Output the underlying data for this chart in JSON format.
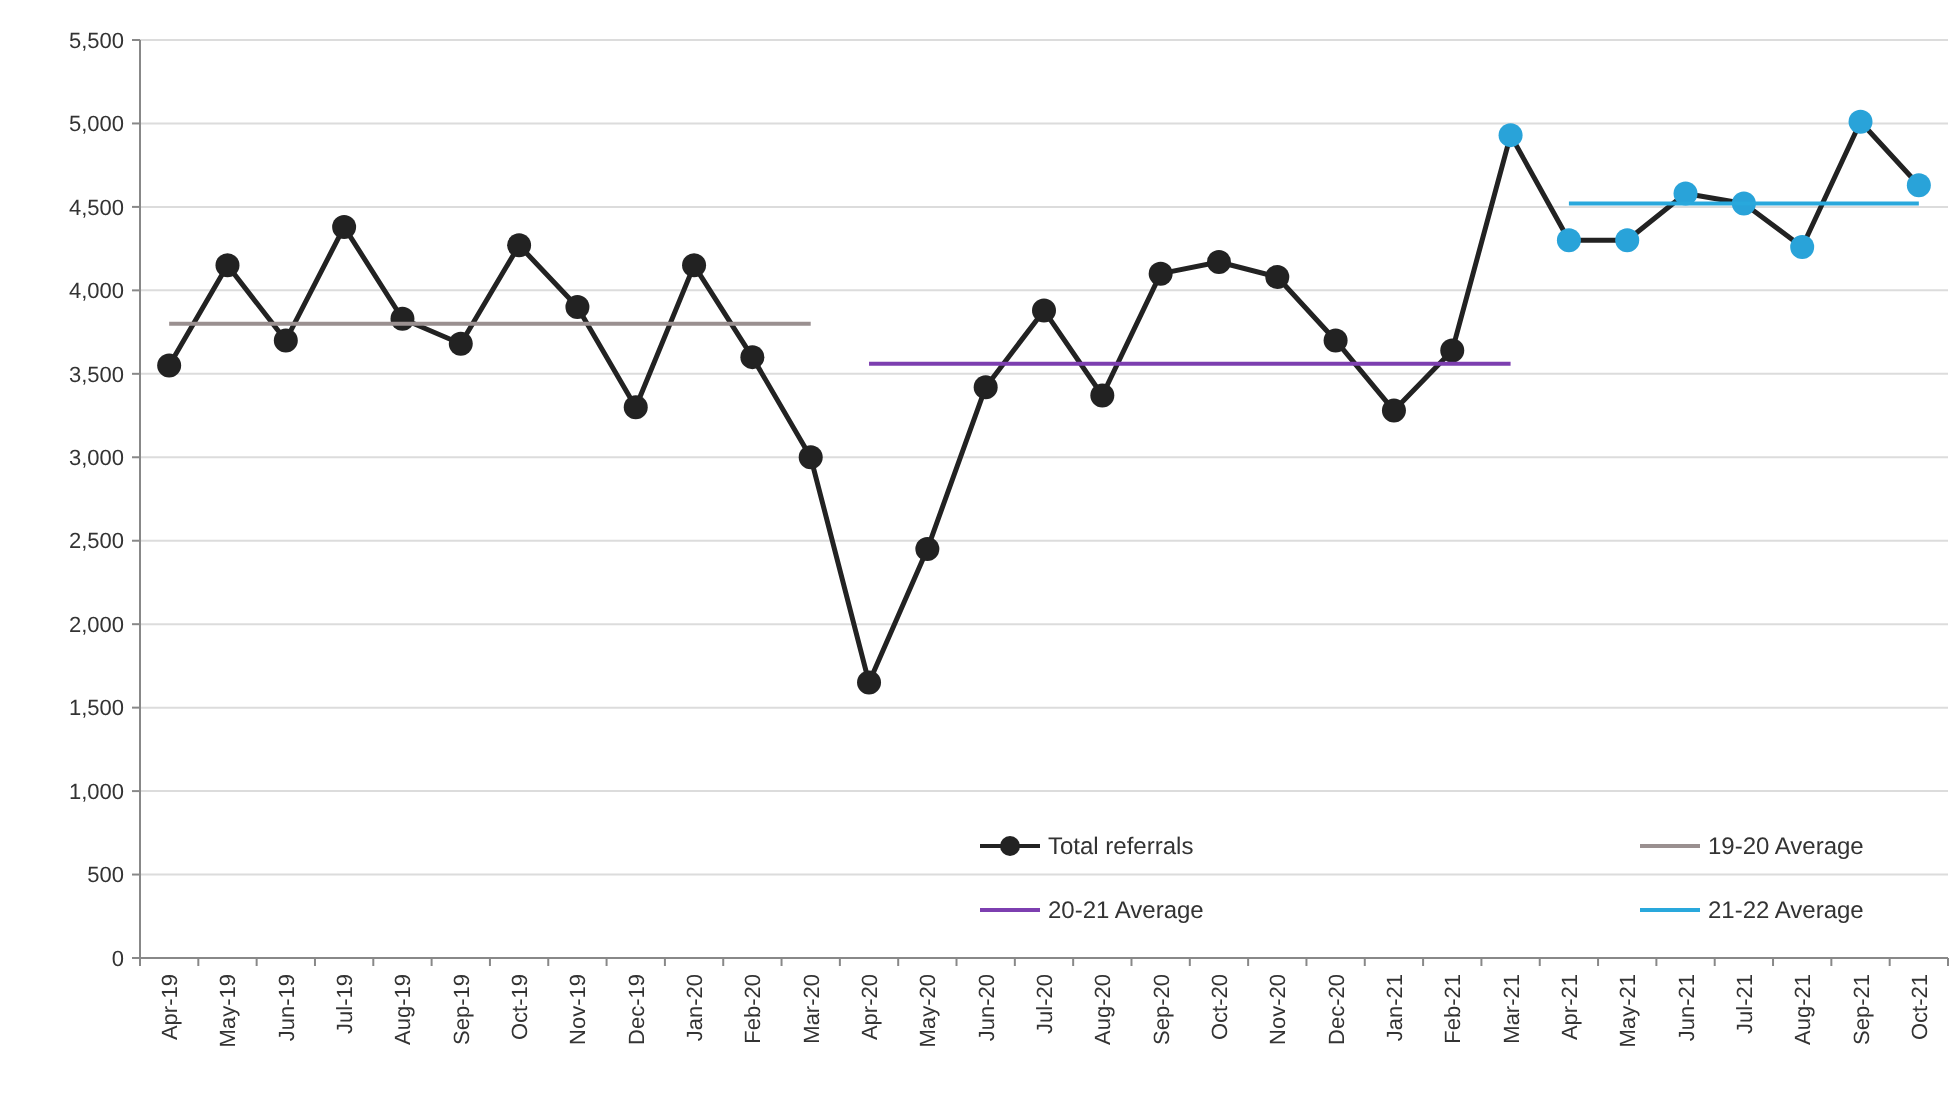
{
  "chart_data": {
    "type": "line",
    "categories": [
      "Apr-19",
      "May-19",
      "Jun-19",
      "Jul-19",
      "Aug-19",
      "Sep-19",
      "Oct-19",
      "Nov-19",
      "Dec-19",
      "Jan-20",
      "Feb-20",
      "Mar-20",
      "Apr-20",
      "May-20",
      "Jun-20",
      "Jul-20",
      "Aug-20",
      "Sep-20",
      "Oct-20",
      "Nov-20",
      "Dec-20",
      "Jan-21",
      "Feb-21",
      "Mar-21",
      "Apr-21",
      "May-21",
      "Jun-21",
      "Jul-21",
      "Aug-21",
      "Sep-21",
      "Oct-21"
    ],
    "series": [
      {
        "name": "Total referrals",
        "color": "#222222",
        "marker": "circle",
        "values": [
          3550,
          4150,
          3700,
          4380,
          3830,
          3680,
          4270,
          3900,
          3300,
          4150,
          3600,
          3000,
          1650,
          2450,
          3420,
          3880,
          3370,
          4100,
          4170,
          4080,
          3700,
          3280,
          3640,
          4930,
          4300,
          4300,
          4580,
          4520,
          4260,
          5010,
          4630
        ],
        "colors": [
          "#222222",
          "#222222",
          "#222222",
          "#222222",
          "#222222",
          "#222222",
          "#222222",
          "#222222",
          "#222222",
          "#222222",
          "#222222",
          "#222222",
          "#222222",
          "#222222",
          "#222222",
          "#222222",
          "#222222",
          "#222222",
          "#222222",
          "#222222",
          "#222222",
          "#222222",
          "#222222",
          "#29a3d9",
          "#29a3d9",
          "#29a3d9",
          "#29a3d9",
          "#29a3d9",
          "#29a3d9",
          "#29a3d9",
          "#29a3d9"
        ]
      },
      {
        "name": "19-20 Average",
        "color": "#9a9090",
        "marker": "none",
        "values": [
          3800,
          3800,
          3800,
          3800,
          3800,
          3800,
          3800,
          3800,
          3800,
          3800,
          3800,
          3800,
          null,
          null,
          null,
          null,
          null,
          null,
          null,
          null,
          null,
          null,
          null,
          null,
          null,
          null,
          null,
          null,
          null,
          null,
          null
        ]
      },
      {
        "name": "20-21 Average",
        "color": "#7d3fb0",
        "marker": "none",
        "values": [
          null,
          null,
          null,
          null,
          null,
          null,
          null,
          null,
          null,
          null,
          null,
          null,
          3560,
          3560,
          3560,
          3560,
          3560,
          3560,
          3560,
          3560,
          3560,
          3560,
          3560,
          3560,
          null,
          null,
          null,
          null,
          null,
          null,
          null
        ]
      },
      {
        "name": "21-22 Average",
        "color": "#29a8dc",
        "marker": "none",
        "values": [
          null,
          null,
          null,
          null,
          null,
          null,
          null,
          null,
          null,
          null,
          null,
          null,
          null,
          null,
          null,
          null,
          null,
          null,
          null,
          null,
          null,
          null,
          null,
          null,
          4520,
          4520,
          4520,
          4520,
          4520,
          4520,
          4520
        ]
      }
    ],
    "ylim": [
      0,
      5500
    ],
    "yticks": [
      0,
      500,
      {
        "value": 1000,
        "label": "1,000"
      },
      {
        "value": 1500,
        "label": "1,500"
      },
      {
        "value": 2000,
        "label": "2,000"
      },
      {
        "value": 2500,
        "label": "2,500"
      },
      {
        "value": 3000,
        "label": "3,000"
      },
      {
        "value": 3500,
        "label": "3,500"
      },
      {
        "value": 4000,
        "label": "4,000"
      },
      {
        "value": 4500,
        "label": "4,500"
      },
      {
        "value": 5000,
        "label": "5,000"
      },
      {
        "value": 5500,
        "label": "5,500"
      }
    ],
    "grid": "y",
    "legend": "bottom right",
    "line_style": "solid"
  }
}
